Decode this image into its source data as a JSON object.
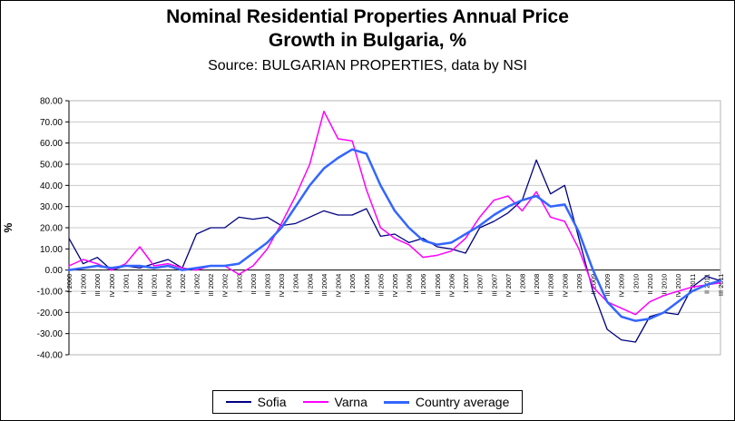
{
  "chart_data": {
    "type": "line",
    "title_line1": "Nominal Residential Properties Annual Price",
    "title_line2": "Growth in Bulgaria, %",
    "subtitle": "Source: BULGARIAN PROPERTIES, data by NSI",
    "ylabel": "%",
    "ylim": [
      -40,
      80
    ],
    "ytick_step": 10,
    "grid": true,
    "legend_position": "bottom",
    "colors": {
      "grid": "#c9c9c9",
      "axis": "#000000",
      "plot_border": "#b5b5b5"
    },
    "categories": [
      "I 2000",
      "II 2000",
      "III 2000",
      "IV 2000",
      "I 2001",
      "II 2001",
      "III 2001",
      "IV 2001",
      "I 2002",
      "II 2002",
      "III 2002",
      "IV 2002",
      "I 2003",
      "II 2003",
      "III 2003",
      "IV 2003",
      "I 2004",
      "II 2004",
      "III 2004",
      "IV 2004",
      "I 2005",
      "II 2005",
      "III 2005",
      "IV 2005",
      "I 2006",
      "II 2006",
      "III 2006",
      "IV 2006",
      "I 2007",
      "II 2007",
      "III 2007",
      "IV 2007",
      "I 2008",
      "II 2008",
      "III 2008",
      "IV 2008",
      "I 2009",
      "II 2009",
      "III 2009",
      "IV 2009",
      "I 2010",
      "II 2010",
      "III 2010",
      "IV 2010",
      "I 2011",
      "II 2011",
      "III 2011"
    ],
    "series": [
      {
        "name": "Sofia",
        "color": "#000080",
        "width": 1.3,
        "values": [
          15,
          3,
          6,
          0,
          2,
          1,
          3,
          5,
          1,
          17,
          20,
          20,
          25,
          24,
          25,
          21,
          22,
          25,
          28,
          26,
          26,
          29,
          16,
          17,
          13,
          15,
          11,
          10,
          8,
          20,
          23,
          27,
          33,
          52,
          36,
          40,
          15,
          -10,
          -28,
          -33,
          -34,
          -22,
          -20,
          -21,
          -8,
          -3,
          -5
        ]
      },
      {
        "name": "Varna",
        "color": "#FF00FF",
        "width": 1.5,
        "values": [
          2,
          5,
          3,
          0,
          3,
          11,
          2,
          3,
          1,
          0,
          2,
          2,
          -2,
          2,
          10,
          22,
          35,
          50,
          75,
          62,
          61,
          38,
          20,
          15,
          12,
          6,
          7,
          9,
          15,
          25,
          33,
          35,
          28,
          37,
          25,
          23,
          10,
          -8,
          -15,
          -18,
          -21,
          -15,
          -12,
          -10,
          -8,
          -7,
          -6
        ]
      },
      {
        "name": "Country average",
        "color": "#3366FF",
        "width": 2.5,
        "values": [
          0,
          1,
          2,
          1,
          2,
          2,
          1,
          2,
          0,
          1,
          2,
          2,
          3,
          8,
          13,
          20,
          30,
          40,
          48,
          53,
          57,
          55,
          40,
          28,
          20,
          14,
          12,
          13,
          17,
          21,
          26,
          30,
          33,
          35,
          30,
          31,
          18,
          0,
          -15,
          -22,
          -24,
          -23,
          -20,
          -15,
          -10,
          -7,
          -5
        ]
      }
    ]
  }
}
